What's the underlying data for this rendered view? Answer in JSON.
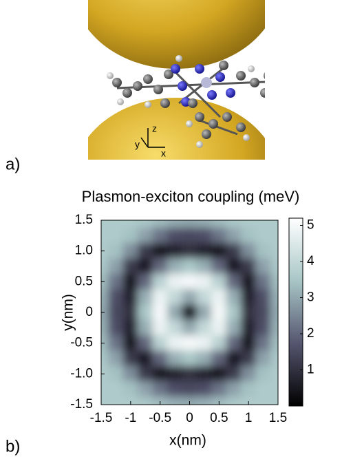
{
  "panel_a": {
    "label": "a)",
    "axis_labels": [
      "z",
      "y",
      "x"
    ]
  },
  "panel_b": {
    "label": "b)"
  },
  "chart_data": {
    "type": "heatmap",
    "title": "Plasmon-exciton coupling (meV)",
    "x_label": "x(nm)",
    "y_label": "y(nm)",
    "x": [
      -1.5,
      -1.25,
      -1,
      -0.75,
      -0.5,
      -0.25,
      0,
      0.25,
      0.5,
      0.75,
      1,
      1.25,
      1.5
    ],
    "y": [
      1.5,
      1.25,
      1,
      0.75,
      0.5,
      0.25,
      0,
      -0.25,
      -0.5,
      -0.75,
      -1,
      -1.25,
      -1.5
    ],
    "z": [
      [
        3.6,
        3.6,
        3.6,
        3.5,
        3.3,
        3.1,
        3.0,
        3.1,
        3.3,
        3.5,
        3.6,
        3.6,
        3.6
      ],
      [
        3.6,
        3.6,
        3.4,
        2.9,
        2.2,
        1.6,
        1.5,
        1.6,
        2.2,
        2.9,
        3.4,
        3.6,
        3.6
      ],
      [
        3.6,
        3.4,
        2.6,
        1.2,
        0.4,
        0.7,
        1.0,
        0.7,
        0.4,
        1.2,
        2.6,
        3.4,
        3.6
      ],
      [
        3.5,
        2.9,
        1.2,
        0.5,
        2.0,
        3.1,
        3.5,
        3.1,
        2.0,
        0.5,
        1.2,
        2.9,
        3.5
      ],
      [
        3.3,
        2.2,
        0.4,
        2.0,
        3.8,
        4.8,
        5.0,
        4.8,
        3.8,
        2.0,
        0.4,
        2.2,
        3.3
      ],
      [
        3.1,
        1.6,
        0.7,
        3.1,
        4.8,
        4.0,
        3.0,
        4.0,
        4.8,
        3.1,
        0.7,
        1.6,
        3.1
      ],
      [
        3.0,
        1.5,
        1.0,
        3.5,
        5.0,
        3.0,
        0.3,
        3.0,
        5.0,
        3.5,
        1.0,
        1.5,
        3.0
      ],
      [
        3.1,
        1.6,
        0.7,
        3.1,
        4.8,
        4.0,
        3.0,
        4.0,
        4.8,
        3.1,
        0.7,
        1.6,
        3.1
      ],
      [
        3.3,
        2.2,
        0.4,
        2.0,
        3.8,
        4.8,
        5.0,
        4.8,
        3.8,
        2.0,
        0.4,
        2.2,
        3.3
      ],
      [
        3.5,
        2.9,
        1.2,
        0.5,
        2.0,
        3.1,
        3.5,
        3.1,
        2.0,
        0.5,
        1.2,
        2.9,
        3.5
      ],
      [
        3.6,
        3.4,
        2.6,
        1.2,
        0.4,
        0.7,
        1.0,
        0.7,
        0.4,
        1.2,
        2.6,
        3.4,
        3.6
      ],
      [
        3.6,
        3.6,
        3.4,
        2.9,
        2.2,
        1.6,
        1.5,
        1.6,
        2.2,
        2.9,
        3.4,
        3.6,
        3.6
      ],
      [
        3.6,
        3.6,
        3.6,
        3.5,
        3.3,
        3.1,
        3.0,
        3.1,
        3.3,
        3.5,
        3.6,
        3.6,
        3.6
      ]
    ],
    "xlim": [
      -1.5,
      1.5
    ],
    "ylim": [
      -1.5,
      1.5
    ],
    "xticks": [
      -1.5,
      -1,
      -0.5,
      0,
      0.5,
      1,
      1.5
    ],
    "yticks": [
      1.5,
      {
        "value": 1,
        "label": "1.0"
      },
      0.5,
      0,
      -0.5,
      {
        "value": -1,
        "label": "-1.0"
      },
      -1.5
    ],
    "clim": [
      0,
      5.2
    ],
    "cticks": [
      1,
      2,
      3,
      4,
      5
    ],
    "colormap": [
      "#000000",
      "#55556f",
      "#a8c6c6",
      "#ffffff"
    ]
  }
}
